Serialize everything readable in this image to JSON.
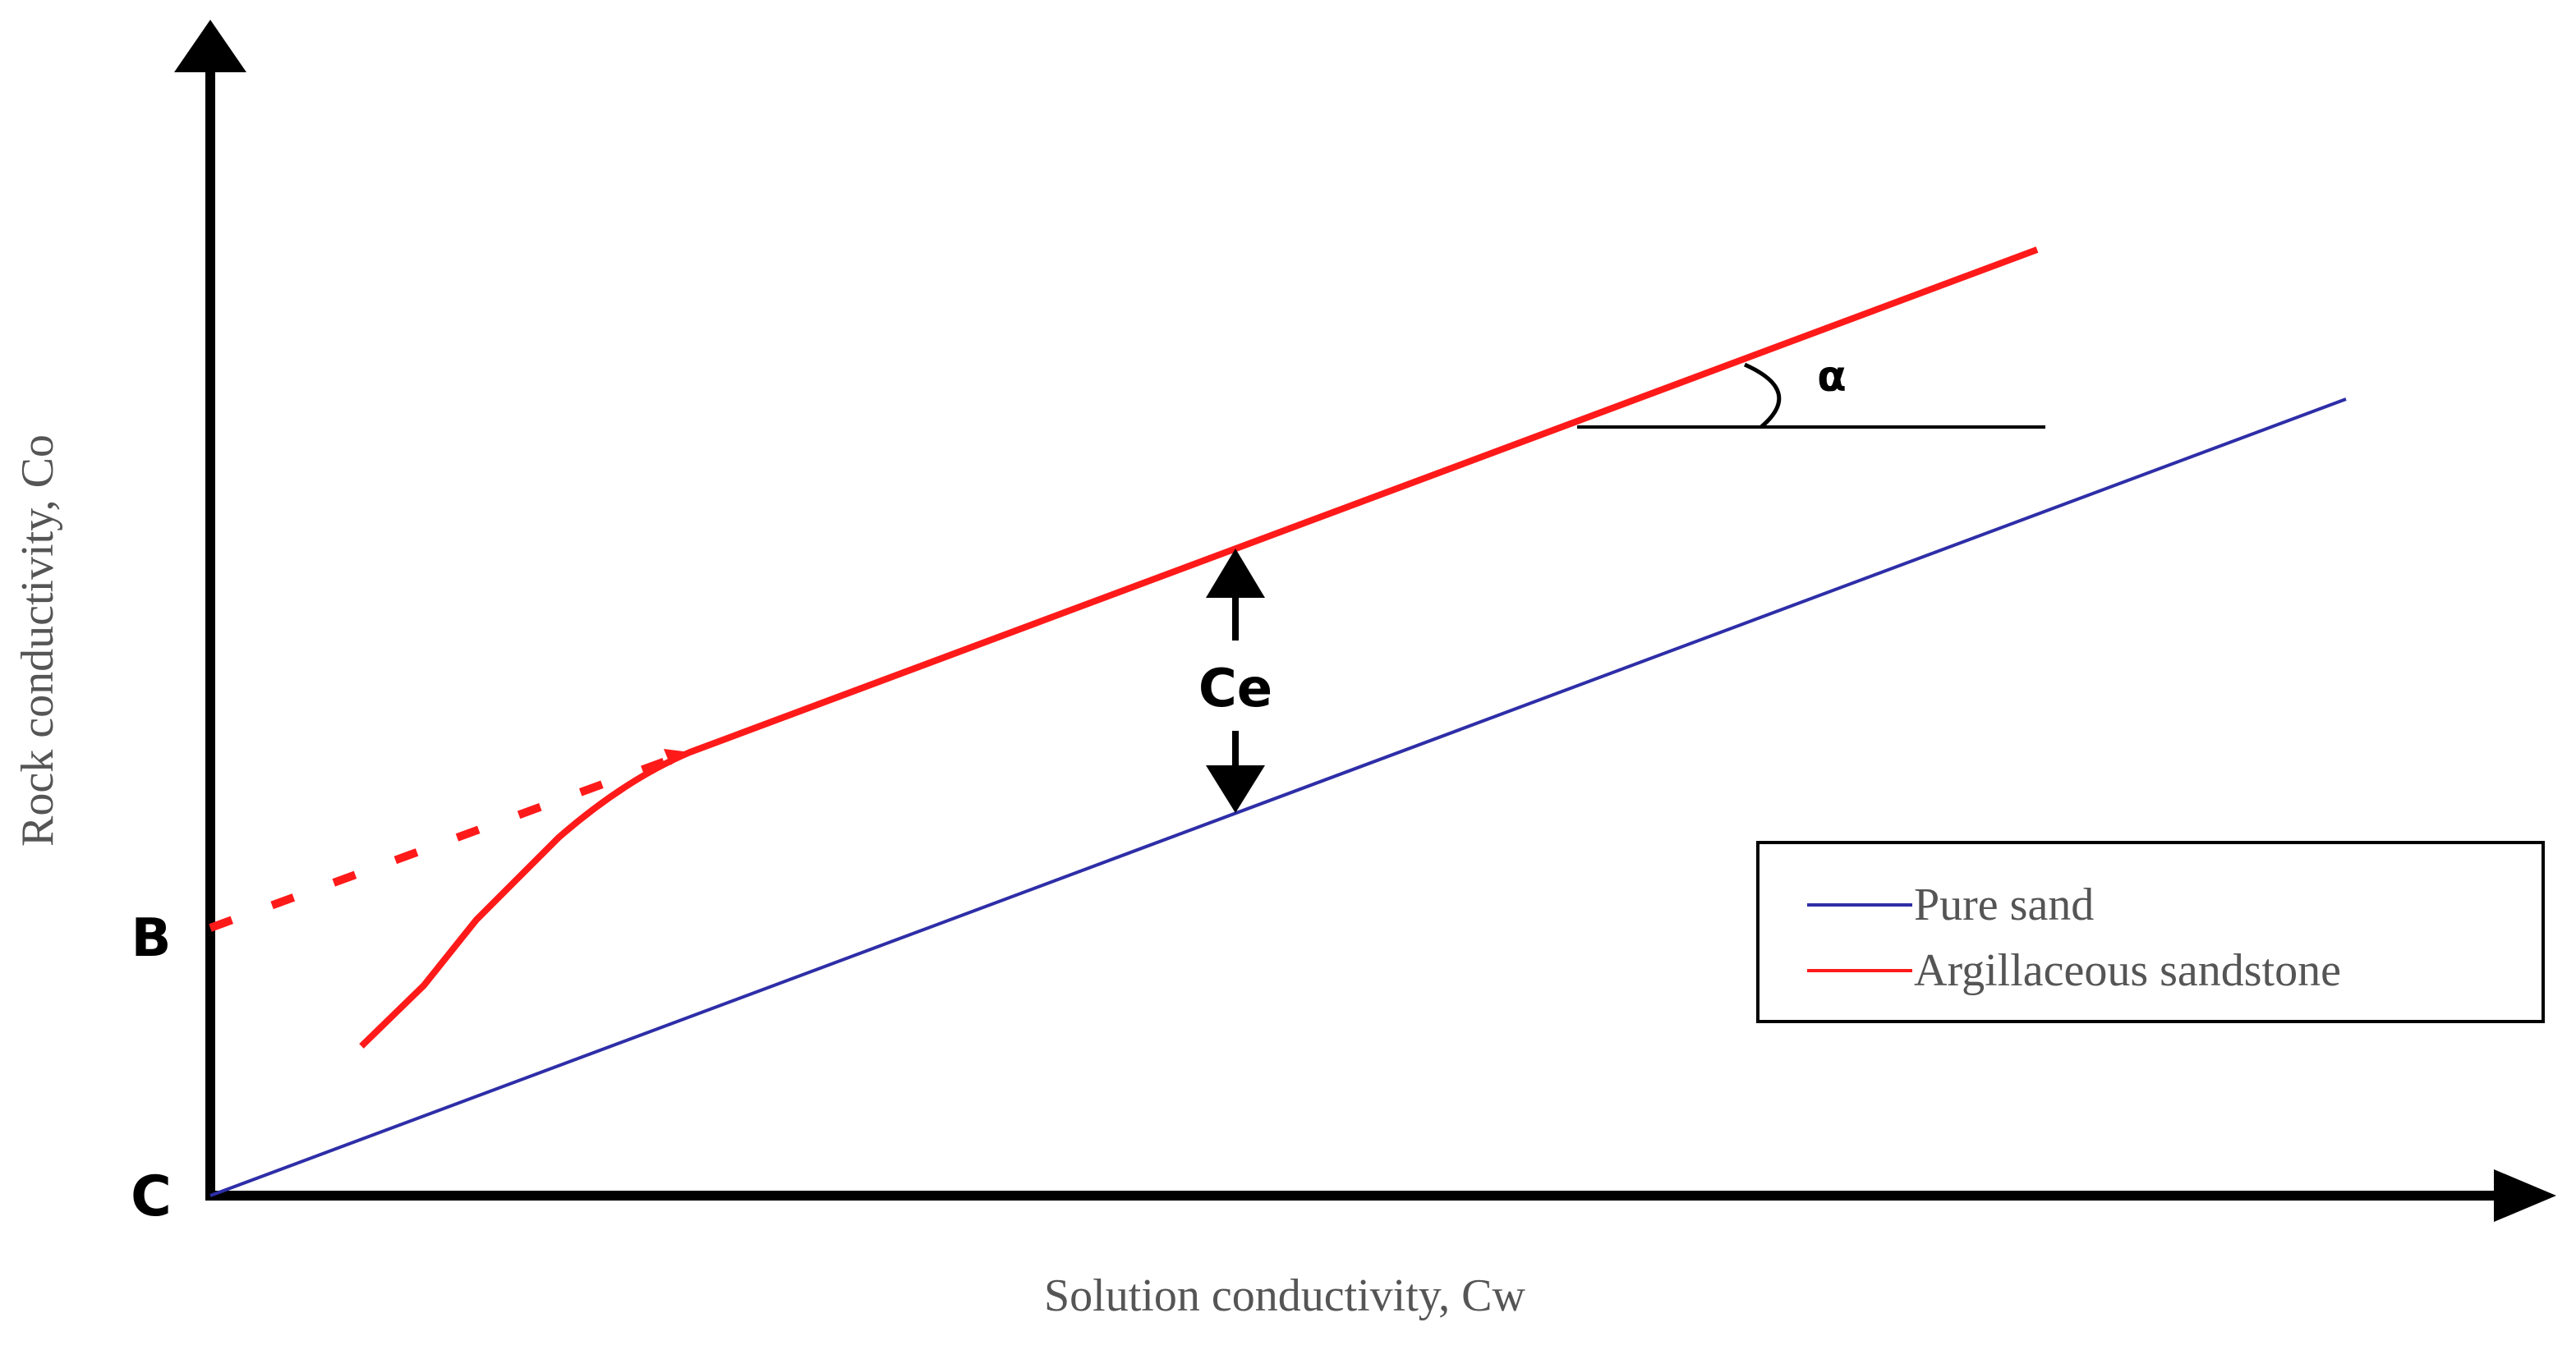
{
  "axes": {
    "x_label": "Solution conductivity, Cw",
    "y_label": "Rock conductivity, Co"
  },
  "labels": {
    "origin": "C",
    "intercept": "B",
    "excess": "Ce",
    "angle": "α"
  },
  "legend": {
    "items": [
      {
        "label": "Pure sand",
        "color": "#2e2ea8"
      },
      {
        "label": "Argillaceous sandstone",
        "color": "#ff1a1a"
      }
    ]
  }
}
